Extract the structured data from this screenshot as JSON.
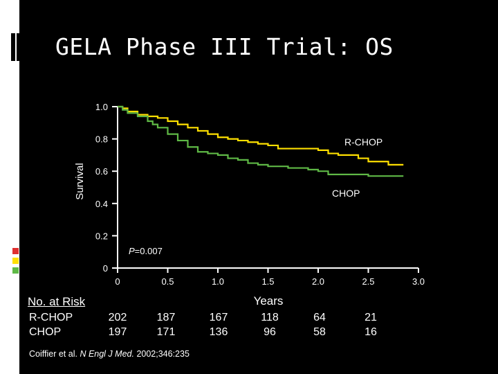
{
  "slide": {
    "title": "GELA Phase III Trial: OS",
    "citation_authors": "Coiffier et al.",
    "citation_journal": "N Engl J Med.",
    "citation_ref": "2002;346:235"
  },
  "colors": {
    "background": "#000000",
    "rchop": "#ffe000",
    "chop": "#5fb946",
    "accent_red": "#e03030",
    "accent_yellow": "#ffe000",
    "accent_green": "#5fb946"
  },
  "chart_data": {
    "type": "line",
    "xlabel": "Years",
    "ylabel": "Survival",
    "xlim": [
      0,
      3.0
    ],
    "ylim": [
      0,
      1.0
    ],
    "x_ticks": [
      "0",
      "0.5",
      "1.0",
      "1.5",
      "2.0",
      "2.5",
      "3.0"
    ],
    "y_ticks": [
      "0",
      "0.2",
      "0.4",
      "0.6",
      "0.8",
      "1.0"
    ],
    "grid": false,
    "annotation_p": "=0.007",
    "annotation_p_letter": "P",
    "series": [
      {
        "name": "R-CHOP",
        "x": [
          0,
          0.05,
          0.1,
          0.2,
          0.3,
          0.4,
          0.5,
          0.6,
          0.7,
          0.8,
          0.9,
          1.0,
          1.1,
          1.2,
          1.3,
          1.4,
          1.5,
          1.6,
          1.7,
          1.9,
          2.0,
          2.1,
          2.2,
          2.3,
          2.4,
          2.5,
          2.6,
          2.7,
          2.8,
          2.85
        ],
        "y": [
          1.0,
          0.99,
          0.97,
          0.95,
          0.94,
          0.93,
          0.91,
          0.89,
          0.87,
          0.85,
          0.83,
          0.81,
          0.8,
          0.79,
          0.78,
          0.77,
          0.76,
          0.74,
          0.74,
          0.74,
          0.73,
          0.71,
          0.7,
          0.7,
          0.68,
          0.66,
          0.66,
          0.64,
          0.64,
          0.64
        ]
      },
      {
        "name": "CHOP",
        "x": [
          0,
          0.05,
          0.1,
          0.2,
          0.3,
          0.35,
          0.4,
          0.5,
          0.6,
          0.7,
          0.8,
          0.9,
          1.0,
          1.1,
          1.2,
          1.3,
          1.4,
          1.5,
          1.6,
          1.7,
          1.8,
          1.9,
          2.0,
          2.1,
          2.3,
          2.5,
          2.85
        ],
        "y": [
          1.0,
          0.98,
          0.96,
          0.94,
          0.91,
          0.89,
          0.87,
          0.83,
          0.79,
          0.75,
          0.72,
          0.71,
          0.7,
          0.68,
          0.67,
          0.65,
          0.64,
          0.63,
          0.63,
          0.62,
          0.62,
          0.61,
          0.6,
          0.58,
          0.58,
          0.57,
          0.57
        ]
      }
    ],
    "labels": {
      "rchop": "R-CHOP",
      "chop": "CHOP"
    }
  },
  "risk_table": {
    "header": "No. at Risk",
    "rows": [
      {
        "label": "R-CHOP",
        "values": [
          "202",
          "187",
          "167",
          "118",
          "64",
          "21"
        ]
      },
      {
        "label": "CHOP",
        "values": [
          "197",
          "171",
          "136",
          "96",
          "58",
          "16"
        ]
      }
    ]
  }
}
